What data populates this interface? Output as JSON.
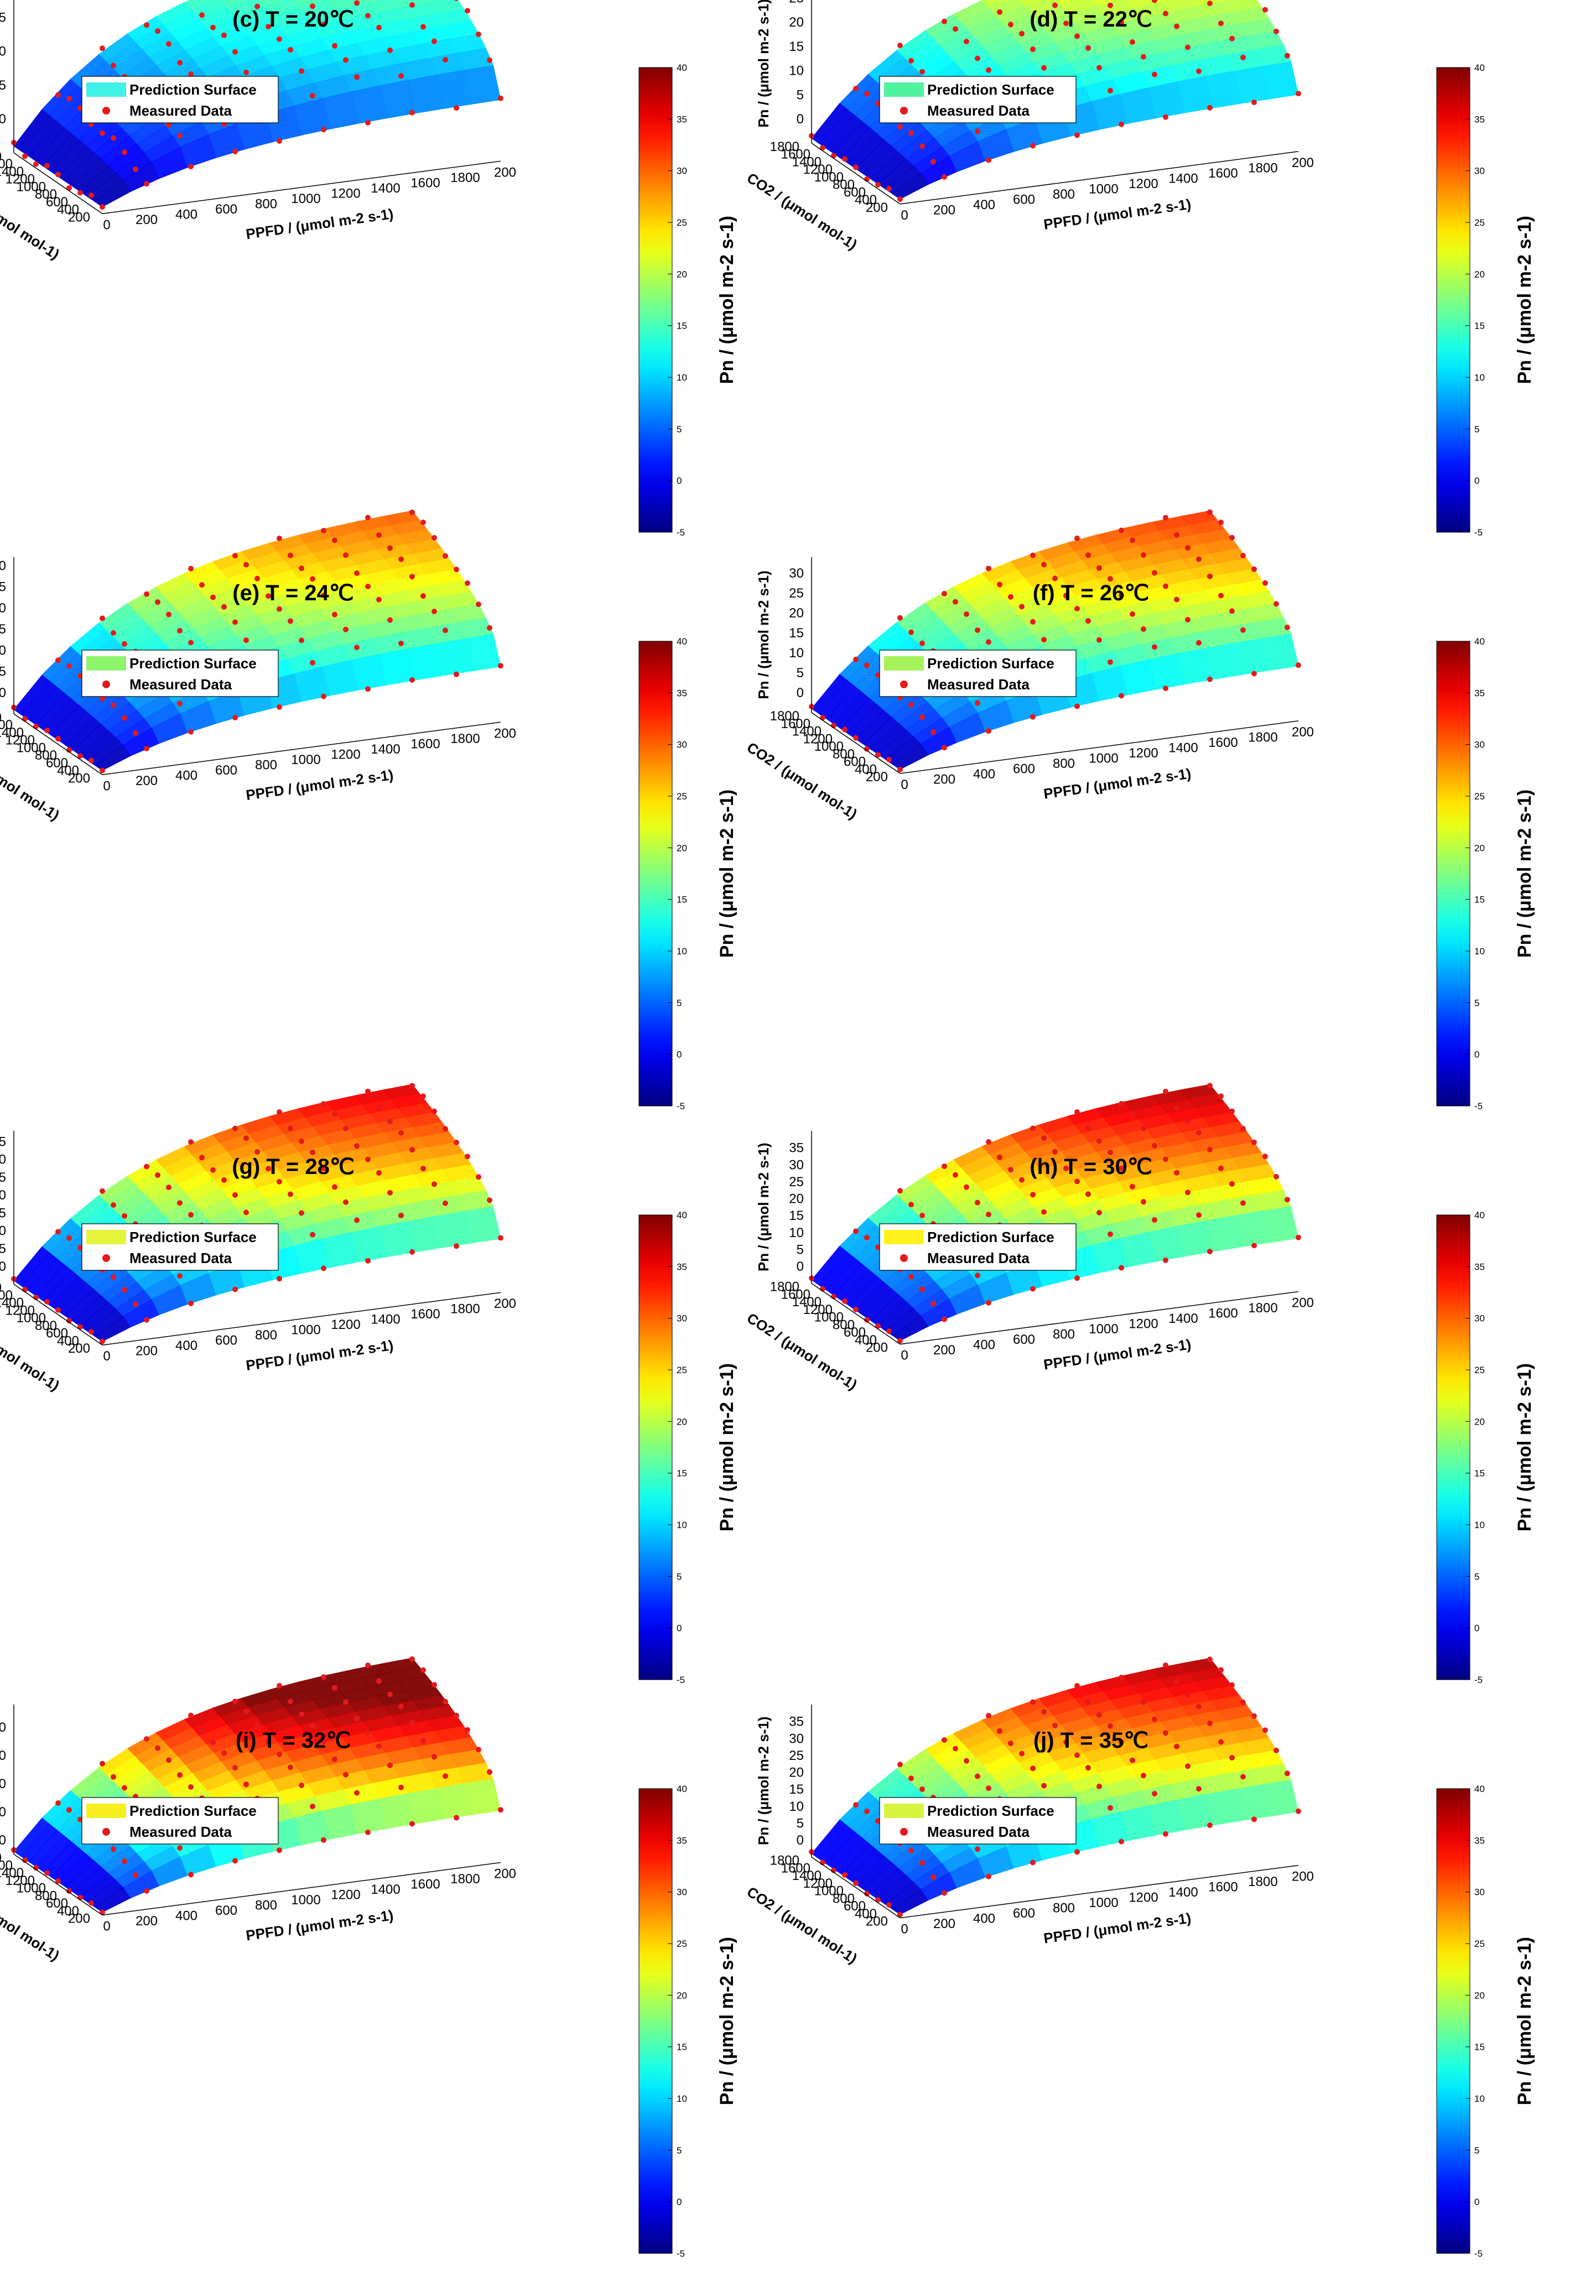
{
  "figure": {
    "surface_legend_label": "Prediction Surface",
    "points_legend_label": "Measured Data",
    "co2_axis_label": "CO2 / (μmol mol-1)",
    "ppfd_axis_label": "PPFD / (μmol m-2 s-1)",
    "pn_axis_label": "Pn / (μmol m-2 s-1)",
    "colorbar_label": "Pn / (μmol m-2 s-1)",
    "colorbar_ticks": [
      "40",
      "35",
      "30",
      "25",
      "20",
      "15",
      "10",
      "5",
      "0",
      "-5"
    ],
    "colormap": "jet",
    "point_color": "#e41a1c"
  },
  "chart_data": [
    {
      "type": "surface3d",
      "title": "(c)  T = 20℃",
      "temperature_C": 20,
      "xlabel": "PPFD / (μmol m-2 s-1)",
      "ylabel": "CO2 / (μmol mol-1)",
      "zlabel": "Pn / (μmol m-2 s-1)",
      "x_ticks": [
        "0",
        "200",
        "400",
        "600",
        "800",
        "1000",
        "1200",
        "1400",
        "1600",
        "1800",
        "200"
      ],
      "y_ticks": [
        "1800",
        "1600",
        "1400",
        "1200",
        "1000",
        "800",
        "600",
        "400",
        "200"
      ],
      "z_ticks": [
        "15",
        "10",
        "5",
        "0"
      ],
      "xlim": [
        0,
        2000
      ],
      "ylim": [
        200,
        1800
      ],
      "zlim": [
        -5,
        20
      ],
      "pn_max": 20,
      "pn_min": -4,
      "legend_color": "#3ff1e6",
      "colorbar_range": [
        -5,
        40
      ],
      "series": [
        {
          "name": "Prediction Surface",
          "type": "surface"
        },
        {
          "name": "Measured Data",
          "type": "scatter3d"
        }
      ]
    },
    {
      "type": "surface3d",
      "title": "(d)  T = 22℃",
      "temperature_C": 22,
      "xlabel": "PPFD / (μmol m-2 s-1)",
      "ylabel": "CO2 / (μmol mol-1)",
      "zlabel": "Pn / (μmol m-2 s-1)",
      "x_ticks": [
        "0",
        "200",
        "400",
        "600",
        "800",
        "1000",
        "1200",
        "1400",
        "1600",
        "1800",
        "200"
      ],
      "y_ticks": [
        "1800",
        "1600",
        "1400",
        "1200",
        "1000",
        "800",
        "600",
        "400",
        "200"
      ],
      "z_ticks": [
        "25",
        "20",
        "15",
        "10",
        "5",
        "0"
      ],
      "xlim": [
        0,
        2000
      ],
      "ylim": [
        200,
        1800
      ],
      "zlim": [
        -5,
        28
      ],
      "pn_max": 28,
      "pn_min": -4,
      "legend_color": "#4ff3a0",
      "colorbar_range": [
        -5,
        40
      ],
      "series": [
        {
          "name": "Prediction Surface",
          "type": "surface"
        },
        {
          "name": "Measured Data",
          "type": "scatter3d"
        }
      ]
    },
    {
      "type": "surface3d",
      "title": "(e)  T = 24℃",
      "temperature_C": 24,
      "xlabel": "PPFD / (μmol m-2 s-1)",
      "ylabel": "CO2 / (μmol mol-1)",
      "zlabel": "Pn / (μmol m-2 s-1)",
      "x_ticks": [
        "0",
        "200",
        "400",
        "600",
        "800",
        "1000",
        "1200",
        "1400",
        "1600",
        "1800",
        "200"
      ],
      "y_ticks": [
        "1800",
        "1600",
        "1400",
        "1200",
        "1000",
        "800",
        "600",
        "400",
        "200"
      ],
      "z_ticks": [
        "30",
        "25",
        "20",
        "15",
        "10",
        "5",
        "0"
      ],
      "xlim": [
        0,
        2000
      ],
      "ylim": [
        200,
        1800
      ],
      "zlim": [
        -5,
        32
      ],
      "pn_max": 32,
      "pn_min": -4,
      "legend_color": "#8ef46c",
      "colorbar_range": [
        -5,
        40
      ],
      "series": [
        {
          "name": "Prediction Surface",
          "type": "surface"
        },
        {
          "name": "Measured Data",
          "type": "scatter3d"
        }
      ]
    },
    {
      "type": "surface3d",
      "title": "(f)  T = 26℃",
      "temperature_C": 26,
      "xlabel": "PPFD / (μmol m-2 s-1)",
      "ylabel": "CO2 / (μmol mol-1)",
      "zlabel": "Pn / (μmol m-2 s-1)",
      "x_ticks": [
        "0",
        "200",
        "400",
        "600",
        "800",
        "1000",
        "1200",
        "1400",
        "1600",
        "1800",
        "200"
      ],
      "y_ticks": [
        "1800",
        "1600",
        "1400",
        "1200",
        "1000",
        "800",
        "600",
        "400",
        "200"
      ],
      "z_ticks": [
        "30",
        "25",
        "20",
        "15",
        "10",
        "5",
        "0"
      ],
      "xlim": [
        0,
        2000
      ],
      "ylim": [
        200,
        1800
      ],
      "zlim": [
        -5,
        34
      ],
      "pn_max": 34,
      "pn_min": -4,
      "legend_color": "#a6f25a",
      "colorbar_range": [
        -5,
        40
      ],
      "series": [
        {
          "name": "Prediction Surface",
          "type": "surface"
        },
        {
          "name": "Measured Data",
          "type": "scatter3d"
        }
      ]
    },
    {
      "type": "surface3d",
      "title": "(g)  T = 28℃",
      "temperature_C": 28,
      "xlabel": "PPFD / (μmol m-2 s-1)",
      "ylabel": "CO2 / (μmol mol-1)",
      "zlabel": "Pn / (μmol m-2 s-1)",
      "x_ticks": [
        "0",
        "200",
        "400",
        "600",
        "800",
        "1000",
        "1200",
        "1400",
        "1600",
        "1800",
        "200"
      ],
      "y_ticks": [
        "1800",
        "1600",
        "1400",
        "1200",
        "1000",
        "800",
        "600",
        "400",
        "200"
      ],
      "z_ticks": [
        "35",
        "30",
        "25",
        "20",
        "15",
        "10",
        "5",
        "0"
      ],
      "xlim": [
        0,
        2000
      ],
      "ylim": [
        200,
        1800
      ],
      "zlim": [
        -5,
        38
      ],
      "pn_max": 38,
      "pn_min": -4,
      "legend_color": "#e3f43a",
      "colorbar_range": [
        -5,
        40
      ],
      "series": [
        {
          "name": "Prediction Surface",
          "type": "surface"
        },
        {
          "name": "Measured Data",
          "type": "scatter3d"
        }
      ]
    },
    {
      "type": "surface3d",
      "title": "(h)  T = 30℃",
      "temperature_C": 30,
      "xlabel": "PPFD / (μmol m-2 s-1)",
      "ylabel": "CO2 / (μmol mol-1)",
      "zlabel": "Pn / (μmol m-2 s-1)",
      "x_ticks": [
        "0",
        "200",
        "400",
        "600",
        "800",
        "1000",
        "1200",
        "1400",
        "1600",
        "1800",
        "200"
      ],
      "y_ticks": [
        "1800",
        "1600",
        "1400",
        "1200",
        "1000",
        "800",
        "600",
        "400",
        "200"
      ],
      "z_ticks": [
        "35",
        "30",
        "25",
        "20",
        "15",
        "10",
        "5",
        "0"
      ],
      "xlim": [
        0,
        2000
      ],
      "ylim": [
        200,
        1800
      ],
      "zlim": [
        -5,
        40
      ],
      "pn_max": 40,
      "pn_min": -4,
      "legend_color": "#fdf21c",
      "colorbar_range": [
        -5,
        40
      ],
      "series": [
        {
          "name": "Prediction Surface",
          "type": "surface"
        },
        {
          "name": "Measured Data",
          "type": "scatter3d"
        }
      ]
    },
    {
      "type": "surface3d",
      "title": "(i)  T = 32℃",
      "temperature_C": 32,
      "xlabel": "PPFD / (μmol m-2 s-1)",
      "ylabel": "CO2 / (μmol mol-1)",
      "zlabel": "Pn / (μmol m-2 s-1)",
      "x_ticks": [
        "0",
        "200",
        "400",
        "600",
        "800",
        "1000",
        "1200",
        "1400",
        "1600",
        "1800",
        "200"
      ],
      "y_ticks": [
        "1800",
        "1600",
        "1400",
        "1200",
        "1000",
        "800",
        "600",
        "400",
        "200"
      ],
      "z_ticks": [
        "40",
        "30",
        "20",
        "10",
        "0"
      ],
      "xlim": [
        0,
        2000
      ],
      "ylim": [
        200,
        1800
      ],
      "zlim": [
        -5,
        48
      ],
      "pn_max": 48,
      "pn_min": -4,
      "legend_color": "#f7ee1f",
      "colorbar_range": [
        -5,
        40
      ],
      "series": [
        {
          "name": "Prediction Surface",
          "type": "surface"
        },
        {
          "name": "Measured Data",
          "type": "scatter3d"
        }
      ]
    },
    {
      "type": "surface3d",
      "title": "(j)  T = 35℃",
      "temperature_C": 35,
      "xlabel": "PPFD / (μmol m-2 s-1)",
      "ylabel": "CO2 / (μmol mol-1)",
      "zlabel": "Pn / (μmol m-2 s-1)",
      "x_ticks": [
        "0",
        "200",
        "400",
        "600",
        "800",
        "1000",
        "1200",
        "1400",
        "1600",
        "1800",
        "200"
      ],
      "y_ticks": [
        "1800",
        "1600",
        "1400",
        "1200",
        "1000",
        "800",
        "600",
        "400",
        "200"
      ],
      "z_ticks": [
        "35",
        "30",
        "25",
        "20",
        "15",
        "10",
        "5",
        "0"
      ],
      "xlim": [
        0,
        2000
      ],
      "ylim": [
        200,
        1800
      ],
      "zlim": [
        -5,
        40
      ],
      "pn_max": 40,
      "pn_min": -4,
      "legend_color": "#d6f43e",
      "colorbar_range": [
        -5,
        40
      ],
      "series": [
        {
          "name": "Prediction Surface",
          "type": "surface"
        },
        {
          "name": "Measured Data",
          "type": "scatter3d"
        }
      ]
    }
  ]
}
